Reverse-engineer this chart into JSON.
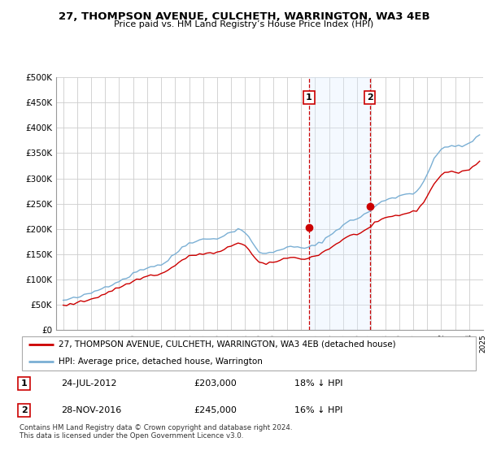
{
  "title": "27, THOMPSON AVENUE, CULCHETH, WARRINGTON, WA3 4EB",
  "subtitle": "Price paid vs. HM Land Registry’s House Price Index (HPI)",
  "ylim": [
    0,
    500000
  ],
  "yticks": [
    0,
    50000,
    100000,
    150000,
    200000,
    250000,
    300000,
    350000,
    400000,
    450000,
    500000
  ],
  "legend_line1": "27, THOMPSON AVENUE, CULCHETH, WARRINGTON, WA3 4EB (detached house)",
  "legend_line2": "HPI: Average price, detached house, Warrington",
  "annotation1_date": "24-JUL-2012",
  "annotation1_price": "£203,000",
  "annotation1_hpi": "18% ↓ HPI",
  "annotation2_date": "28-NOV-2016",
  "annotation2_price": "£245,000",
  "annotation2_hpi": "16% ↓ HPI",
  "footer": "Contains HM Land Registry data © Crown copyright and database right 2024.\nThis data is licensed under the Open Government Licence v3.0.",
  "red_color": "#cc0000",
  "blue_color": "#7aafd4",
  "shading_color": "#ddeeff",
  "hpi_x": [
    1995.0,
    1995.25,
    1995.5,
    1995.75,
    1996.0,
    1996.25,
    1996.5,
    1996.75,
    1997.0,
    1997.25,
    1997.5,
    1997.75,
    1998.0,
    1998.25,
    1998.5,
    1998.75,
    1999.0,
    1999.25,
    1999.5,
    1999.75,
    2000.0,
    2000.25,
    2000.5,
    2000.75,
    2001.0,
    2001.25,
    2001.5,
    2001.75,
    2002.0,
    2002.25,
    2002.5,
    2002.75,
    2003.0,
    2003.25,
    2003.5,
    2003.75,
    2004.0,
    2004.25,
    2004.5,
    2004.75,
    2005.0,
    2005.25,
    2005.5,
    2005.75,
    2006.0,
    2006.25,
    2006.5,
    2006.75,
    2007.0,
    2007.25,
    2007.5,
    2007.75,
    2008.0,
    2008.25,
    2008.5,
    2008.75,
    2009.0,
    2009.25,
    2009.5,
    2009.75,
    2010.0,
    2010.25,
    2010.5,
    2010.75,
    2011.0,
    2011.25,
    2011.5,
    2011.75,
    2012.0,
    2012.25,
    2012.5,
    2012.75,
    2013.0,
    2013.25,
    2013.5,
    2013.75,
    2014.0,
    2014.25,
    2014.5,
    2014.75,
    2015.0,
    2015.25,
    2015.5,
    2015.75,
    2016.0,
    2016.25,
    2016.5,
    2016.75,
    2017.0,
    2017.25,
    2017.5,
    2017.75,
    2018.0,
    2018.25,
    2018.5,
    2018.75,
    2019.0,
    2019.25,
    2019.5,
    2019.75,
    2020.0,
    2020.25,
    2020.5,
    2020.75,
    2021.0,
    2021.25,
    2021.5,
    2021.75,
    2022.0,
    2022.25,
    2022.5,
    2022.75,
    2023.0,
    2023.25,
    2023.5,
    2023.75,
    2024.0,
    2024.25,
    2024.5,
    2024.75
  ],
  "hpi_y": [
    58000,
    59500,
    61000,
    62500,
    64000,
    66000,
    68000,
    70500,
    73000,
    76000,
    79000,
    82000,
    85000,
    88000,
    91000,
    94000,
    97000,
    100000,
    103000,
    107000,
    111000,
    115000,
    119000,
    121000,
    123000,
    125000,
    127000,
    128000,
    129000,
    133000,
    138000,
    144000,
    150000,
    157000,
    163000,
    168000,
    172000,
    175000,
    177000,
    178000,
    179000,
    179500,
    180000,
    181000,
    182000,
    184000,
    187000,
    190000,
    193000,
    197000,
    200000,
    198000,
    193000,
    184000,
    172000,
    162000,
    155000,
    152000,
    151000,
    152000,
    154000,
    157000,
    160000,
    162000,
    163000,
    163500,
    164000,
    163000,
    162000,
    162500,
    163000,
    165000,
    167000,
    171000,
    176000,
    181000,
    186000,
    191000,
    197000,
    203000,
    208000,
    212000,
    215000,
    218000,
    221000,
    224000,
    228000,
    232000,
    237000,
    243000,
    249000,
    253000,
    257000,
    260000,
    262000,
    263000,
    265000,
    267000,
    269000,
    270000,
    271000,
    275000,
    283000,
    295000,
    308000,
    322000,
    337000,
    348000,
    357000,
    362000,
    365000,
    365000,
    363000,
    362000,
    363000,
    366000,
    370000,
    375000,
    380000,
    385000
  ],
  "price_x": [
    1995.0,
    1995.25,
    1995.5,
    1995.75,
    1996.0,
    1996.25,
    1996.5,
    1996.75,
    1997.0,
    1997.25,
    1997.5,
    1997.75,
    1998.0,
    1998.25,
    1998.5,
    1998.75,
    1999.0,
    1999.25,
    1999.5,
    1999.75,
    2000.0,
    2000.25,
    2000.5,
    2000.75,
    2001.0,
    2001.25,
    2001.5,
    2001.75,
    2002.0,
    2002.25,
    2002.5,
    2002.75,
    2003.0,
    2003.25,
    2003.5,
    2003.75,
    2004.0,
    2004.25,
    2004.5,
    2004.75,
    2005.0,
    2005.25,
    2005.5,
    2005.75,
    2006.0,
    2006.25,
    2006.5,
    2006.75,
    2007.0,
    2007.25,
    2007.5,
    2007.75,
    2008.0,
    2008.25,
    2008.5,
    2008.75,
    2009.0,
    2009.25,
    2009.5,
    2009.75,
    2010.0,
    2010.25,
    2010.5,
    2010.75,
    2011.0,
    2011.25,
    2011.5,
    2011.75,
    2012.0,
    2012.25,
    2012.5,
    2012.75,
    2013.0,
    2013.25,
    2013.5,
    2013.75,
    2014.0,
    2014.25,
    2014.5,
    2014.75,
    2015.0,
    2015.25,
    2015.5,
    2015.75,
    2016.0,
    2016.25,
    2016.5,
    2016.75,
    2017.0,
    2017.25,
    2017.5,
    2017.75,
    2018.0,
    2018.25,
    2018.5,
    2018.75,
    2019.0,
    2019.25,
    2019.5,
    2019.75,
    2020.0,
    2020.25,
    2020.5,
    2020.75,
    2021.0,
    2021.25,
    2021.5,
    2021.75,
    2022.0,
    2022.25,
    2022.5,
    2022.75,
    2023.0,
    2023.25,
    2023.5,
    2023.75,
    2024.0,
    2024.25,
    2024.5,
    2024.75
  ],
  "price_y": [
    48000,
    49000,
    50500,
    52000,
    53500,
    55000,
    57000,
    59000,
    61000,
    63500,
    66000,
    69000,
    72000,
    75000,
    78000,
    81000,
    84000,
    87000,
    90000,
    93000,
    96000,
    99000,
    102000,
    104000,
    106000,
    108000,
    109000,
    110000,
    111000,
    114000,
    118000,
    123000,
    128000,
    133000,
    138000,
    142000,
    145000,
    147000,
    149000,
    150000,
    150500,
    151000,
    151500,
    152000,
    153000,
    155000,
    158000,
    162000,
    166000,
    170000,
    173000,
    171000,
    167000,
    159000,
    149000,
    140000,
    134000,
    131000,
    130000,
    131000,
    133000,
    136000,
    139000,
    141000,
    142000,
    142500,
    143000,
    142000,
    141000,
    141500,
    142000,
    144000,
    146000,
    149000,
    153000,
    157000,
    161000,
    165000,
    170000,
    175000,
    179000,
    183000,
    186000,
    188000,
    190000,
    193000,
    196000,
    200000,
    204000,
    209000,
    214000,
    218000,
    221000,
    223000,
    225000,
    226000,
    227000,
    229000,
    231000,
    232000,
    233000,
    237000,
    244000,
    254000,
    265000,
    276000,
    289000,
    299000,
    307000,
    311000,
    313000,
    314000,
    312000,
    311000,
    312000,
    315000,
    319000,
    323000,
    328000,
    333000
  ],
  "sale1_x": 2012.56,
  "sale1_y": 203000,
  "sale2_x": 2016.91,
  "sale2_y": 245000,
  "vline1_x": 2012.56,
  "vline2_x": 2016.91,
  "shade_x1": 2012.56,
  "shade_x2": 2016.91,
  "xmin": 1995.0,
  "xmax": 2025.0
}
